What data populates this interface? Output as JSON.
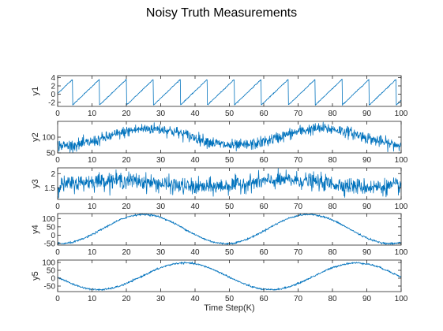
{
  "title": "Noisy Truth Measurements",
  "colors": {
    "line": "#0072bd",
    "axes": "#262626"
  },
  "chart_data": {
    "type": "line",
    "title": "Noisy Truth Measurements",
    "xlabel": "Time Step(K)",
    "xlim": [
      0,
      100
    ],
    "xticks": [
      0,
      10,
      20,
      30,
      40,
      50,
      60,
      70,
      80,
      90,
      100
    ],
    "grid": false,
    "subplots": [
      {
        "ylabel": "y1",
        "ylim": [
          -3,
          4.5
        ],
        "yticks": [
          -2,
          0,
          2,
          4
        ],
        "shape": "sawtooth",
        "min": -2.7,
        "max": 3.6,
        "period": 7.85,
        "phase_start": 0.45,
        "noise": 0.06
      },
      {
        "ylabel": "y2",
        "ylim": [
          50,
          150
        ],
        "yticks": [
          50,
          100
        ],
        "shape": "sine",
        "mean": 100,
        "amplitude": 27,
        "period": 50,
        "peak_at": 27,
        "noise": 9
      },
      {
        "ylabel": "y3",
        "ylim": [
          1.1,
          2.2
        ],
        "yticks": [
          1.5,
          2
        ],
        "shape": "sine",
        "mean": 1.65,
        "amplitude": 0.12,
        "period": 50,
        "peak_at": 17,
        "noise": 0.14
      },
      {
        "ylabel": "y4",
        "ylim": [
          -60,
          130
        ],
        "yticks": [
          -50,
          0,
          50,
          100
        ],
        "shape": "sine",
        "mean": 37,
        "amplitude": 88,
        "period": 48,
        "peak_at": 25,
        "noise": 3
      },
      {
        "ylabel": "y5",
        "ylim": [
          -85,
          115
        ],
        "yticks": [
          -50,
          0,
          50,
          100
        ],
        "shape": "sine",
        "mean": 12,
        "amplitude": 85,
        "period": 50,
        "peak_at": 37,
        "noise": 3
      }
    ]
  }
}
